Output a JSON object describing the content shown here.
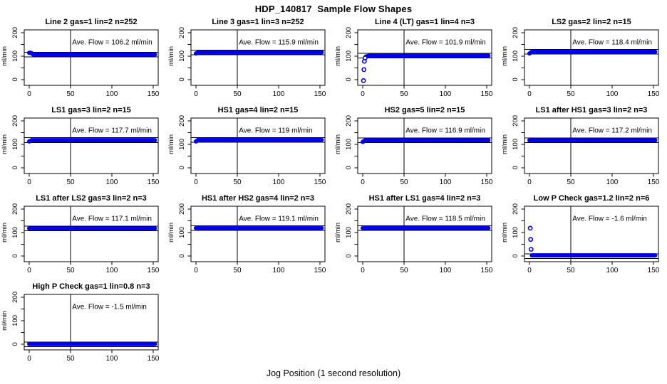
{
  "page": {
    "title": "HDP_140817  Sample Flow Shapes",
    "footer_label": "Jog Position (1 second resolution)"
  },
  "chart_data": {
    "type": "scatter",
    "title": "HDP_140817  Sample Flow Shapes",
    "xlabel": "Jog Position (1 second resolution)",
    "ylabel": "ml/min",
    "layout": {
      "rows": 4,
      "cols": 4,
      "filled_cells": 13,
      "grid": false,
      "legend": "none"
    },
    "xlim": [
      -6,
      156
    ],
    "ylim": [
      -25,
      212
    ],
    "x_ticks": [
      0,
      50,
      100,
      150
    ],
    "y_ticks_major": [
      0,
      100,
      200
    ],
    "y_ticks_minor": [
      50,
      150
    ],
    "marker": {
      "shape": "open-circle",
      "color": "#0000EE"
    },
    "ref_lines": {
      "vertical_x": 50,
      "horizontal_offset_from_ave": 10,
      "color": "#000000"
    },
    "ave_label_template": "Ave. Flow =  {value}  ml/min",
    "subplots": [
      {
        "title": "Line 2 gas=1 lin=2 n=252",
        "ave_flow": 106.2,
        "ave_flow_text": "Ave. Flow =  106.2  ml/min",
        "profile": [
          [
            0,
            114
          ],
          [
            2,
            114
          ],
          [
            5,
            107
          ],
          [
            152,
            107
          ]
        ],
        "outliers": []
      },
      {
        "title": "Line 3 gas=1 lin=3 n=252",
        "ave_flow": 115.9,
        "ave_flow_text": "Ave. Flow =  115.9  ml/min",
        "profile": [
          [
            0,
            111
          ],
          [
            3,
            116
          ],
          [
            152,
            116
          ]
        ],
        "outliers": []
      },
      {
        "title": "Line 4 (LT) gas=1 lin=4 n=3",
        "ave_flow": 101.9,
        "ave_flow_text": "Ave. Flow =  101.9  ml/min",
        "profile": [
          [
            4,
            98
          ],
          [
            8,
            101.5
          ],
          [
            152,
            101.5
          ]
        ],
        "outliers": [
          [
            1,
            -5
          ],
          [
            1.5,
            42
          ],
          [
            2,
            78
          ],
          [
            3,
            92
          ]
        ]
      },
      {
        "title": "LS2 gas=2 lin=2 n=15",
        "ave_flow": 118.4,
        "ave_flow_text": "Ave. Flow =  118.4  ml/min",
        "profile": [
          [
            0,
            111
          ],
          [
            3,
            118
          ],
          [
            152,
            118
          ]
        ],
        "outliers": []
      },
      {
        "title": "LS1 gas=3 lin=2 n=15",
        "ave_flow": 117.7,
        "ave_flow_text": "Ave. Flow =  117.7  ml/min",
        "profile": [
          [
            0,
            112
          ],
          [
            3,
            117.5
          ],
          [
            152,
            117.5
          ]
        ],
        "outliers": []
      },
      {
        "title": "HS1 gas=4 lin=2 n=15",
        "ave_flow": 119,
        "ave_flow_text": "Ave. Flow =  119  ml/min",
        "profile": [
          [
            0,
            112
          ],
          [
            3,
            119
          ],
          [
            152,
            119
          ]
        ],
        "outliers": []
      },
      {
        "title": "HS2 gas=5 lin=2 n=15",
        "ave_flow": 116.9,
        "ave_flow_text": "Ave. Flow =  116.9  ml/min",
        "profile": [
          [
            0,
            110
          ],
          [
            3,
            117
          ],
          [
            152,
            117
          ]
        ],
        "outliers": []
      },
      {
        "title": "LS1 after HS1 gas=3 lin=2 n=3",
        "ave_flow": 117.2,
        "ave_flow_text": "Ave. Flow =  117.2  ml/min",
        "profile": [
          [
            0,
            117
          ],
          [
            152,
            117
          ]
        ],
        "outliers": []
      },
      {
        "title": "LS1 after LS2 gas=3 lin=2 n=3",
        "ave_flow": 117.1,
        "ave_flow_text": "Ave. Flow =  117.1  ml/min",
        "profile": [
          [
            0,
            117
          ],
          [
            152,
            117
          ]
        ],
        "outliers": []
      },
      {
        "title": "HS1 after HS2 gas=4 lin=2 n=3",
        "ave_flow": 119.1,
        "ave_flow_text": "Ave. Flow =  119.1  ml/min",
        "profile": [
          [
            0,
            119
          ],
          [
            152,
            119
          ]
        ],
        "outliers": []
      },
      {
        "title": "HS1 after LS1 gas=4 lin=2 n=3",
        "ave_flow": 118.5,
        "ave_flow_text": "Ave. Flow =  118.5  ml/min",
        "profile": [
          [
            0,
            118.5
          ],
          [
            152,
            118.5
          ]
        ],
        "outliers": []
      },
      {
        "title": "Low P Check gas=1.2 lin=2 n=6",
        "ave_flow": -1.6,
        "ave_flow_text": "Ave. Flow =  -1.6  ml/min",
        "profile": [
          [
            3,
            2
          ],
          [
            152,
            2
          ]
        ],
        "outliers": [
          [
            1,
            118
          ],
          [
            1.5,
            70
          ],
          [
            2,
            28
          ]
        ]
      },
      {
        "title": "High P Check gas=1 lin=0.8 n=3",
        "ave_flow": -1.5,
        "ave_flow_text": "Ave. Flow =  -1.5  ml/min",
        "profile": [
          [
            0,
            0
          ],
          [
            152,
            0
          ]
        ],
        "outliers": []
      }
    ]
  }
}
